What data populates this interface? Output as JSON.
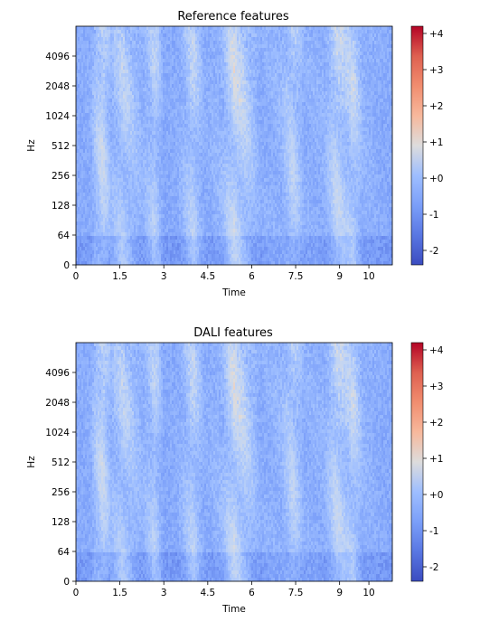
{
  "chart_data": [
    {
      "type": "heatmap",
      "title": "Reference features",
      "xlabel": "Time",
      "ylabel": "Hz",
      "x_ticks": [
        "0",
        "1.5",
        "3",
        "4.5",
        "6",
        "7.5",
        "9",
        "10"
      ],
      "x_tick_values": [
        0,
        1.5,
        3,
        4.5,
        6,
        7.5,
        9,
        10
      ],
      "xlim": [
        0,
        10.8
      ],
      "y_scale": "log (librosa mel-style)",
      "y_ticks": [
        "0",
        "64",
        "128",
        "256",
        "512",
        "1024",
        "2048",
        "4096"
      ],
      "colormap": "coolwarm",
      "colorbar_ticks": [
        "+4",
        "+3",
        "+2",
        "+1",
        "+0",
        "-1",
        "-2"
      ],
      "colorbar_values": [
        4,
        3,
        2,
        1,
        0,
        -1,
        -2
      ],
      "clim": [
        -2.4,
        4.2
      ],
      "grid": false,
      "legend": "colorbar at right",
      "time_profile": [
        [
          0.0,
          0.1
        ],
        [
          0.5,
          0.2
        ],
        [
          0.7,
          1.2
        ],
        [
          0.9,
          1.8
        ],
        [
          1.2,
          0.6
        ],
        [
          1.6,
          1.4
        ],
        [
          1.9,
          1.0
        ],
        [
          2.3,
          0.4
        ],
        [
          2.7,
          1.3
        ],
        [
          3.0,
          0.1
        ],
        [
          3.5,
          0.2
        ],
        [
          4.0,
          1.4
        ],
        [
          4.4,
          0.2
        ],
        [
          5.0,
          0.6
        ],
        [
          5.4,
          1.9
        ],
        [
          5.8,
          1.4
        ],
        [
          6.3,
          0.2
        ],
        [
          7.0,
          0.5
        ],
        [
          7.4,
          1.5
        ],
        [
          7.8,
          0.3
        ],
        [
          8.5,
          0.4
        ],
        [
          8.9,
          1.7
        ],
        [
          9.2,
          1.2
        ],
        [
          9.5,
          1.6
        ],
        [
          9.8,
          0.4
        ],
        [
          10.5,
          0.1
        ]
      ]
    },
    {
      "type": "heatmap",
      "title": "DALI features",
      "xlabel": "Time",
      "ylabel": "Hz",
      "x_ticks": [
        "0",
        "1.5",
        "3",
        "4.5",
        "6",
        "7.5",
        "9",
        "10"
      ],
      "x_tick_values": [
        0,
        1.5,
        3,
        4.5,
        6,
        7.5,
        9,
        10
      ],
      "xlim": [
        0,
        10.8
      ],
      "y_scale": "log (librosa mel-style)",
      "y_ticks": [
        "0",
        "64",
        "128",
        "256",
        "512",
        "1024",
        "2048",
        "4096"
      ],
      "colormap": "coolwarm",
      "colorbar_ticks": [
        "+4",
        "+3",
        "+2",
        "+1",
        "+0",
        "-1",
        "-2"
      ],
      "colorbar_values": [
        4,
        3,
        2,
        1,
        0,
        -1,
        -2
      ],
      "clim": [
        -2.4,
        4.2
      ],
      "grid": false,
      "legend": "colorbar at right",
      "time_profile": [
        [
          0.0,
          0.1
        ],
        [
          0.5,
          0.2
        ],
        [
          0.7,
          1.2
        ],
        [
          0.9,
          1.8
        ],
        [
          1.2,
          0.6
        ],
        [
          1.6,
          1.4
        ],
        [
          1.9,
          1.0
        ],
        [
          2.3,
          0.4
        ],
        [
          2.7,
          1.3
        ],
        [
          3.0,
          0.1
        ],
        [
          3.5,
          0.2
        ],
        [
          4.0,
          1.4
        ],
        [
          4.4,
          0.2
        ],
        [
          5.0,
          0.6
        ],
        [
          5.4,
          1.9
        ],
        [
          5.8,
          1.4
        ],
        [
          6.3,
          0.2
        ],
        [
          7.0,
          0.5
        ],
        [
          7.4,
          1.5
        ],
        [
          7.8,
          0.3
        ],
        [
          8.5,
          0.4
        ],
        [
          8.9,
          1.7
        ],
        [
          9.2,
          1.2
        ],
        [
          9.5,
          1.6
        ],
        [
          9.8,
          0.4
        ],
        [
          10.5,
          0.1
        ]
      ]
    }
  ]
}
